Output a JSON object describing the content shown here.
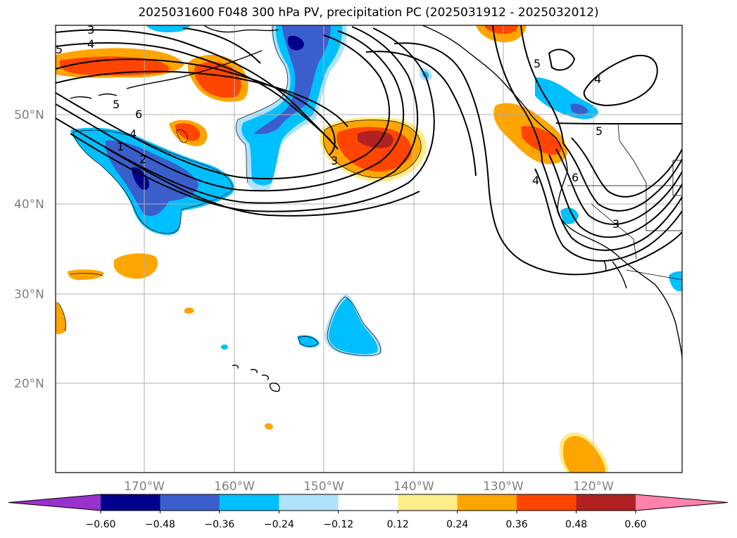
{
  "title": "2025031600 F048 300 hPa PV, precipitation PC (2025031912 - 2025032012)",
  "map": {
    "lat_labels": [
      "50°N",
      "40°N",
      "30°N",
      "20°N"
    ],
    "lon_labels": [
      "170°W",
      "160°W",
      "150°W",
      "140°W",
      "130°W",
      "120°W"
    ],
    "contour_labels": [
      "3",
      "4",
      "5",
      "6",
      "4",
      "1",
      "2",
      "5",
      "4",
      "6",
      "5",
      "3",
      "3",
      "4",
      "5"
    ]
  },
  "colorbar": {
    "colors": [
      "#9932cc",
      "#00008b",
      "#3a5fcd",
      "#00bfff",
      "#b0e2ff",
      "#ffffff",
      "#ffec8b",
      "#ffa500",
      "#ff4500",
      "#b22222",
      "#ff82ab"
    ],
    "tick_labels": [
      "−0.60",
      "−0.48",
      "−0.36",
      "−0.24",
      "−0.12",
      "0.12",
      "0.24",
      "0.36",
      "0.48",
      "0.60"
    ]
  },
  "palette": {
    "lightblue": "#b0e2ff",
    "cyan": "#00bfff",
    "blue": "#3a5fcd",
    "navy": "#00008b",
    "yellow": "#ffec8b",
    "orange": "#ffa500",
    "redorange": "#ff4500",
    "darkred": "#b22222"
  }
}
